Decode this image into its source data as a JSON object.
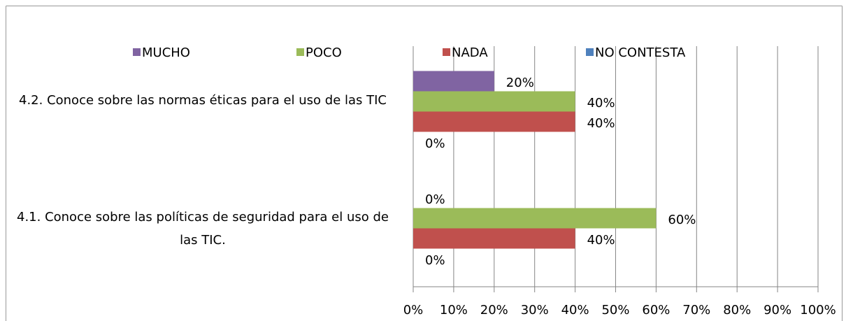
{
  "chart_data": {
    "type": "bar",
    "orientation": "horizontal",
    "categories": [
      "4.1. Conoce sobre las políticas de seguridad para el uso de las TIC.",
      "4.2. Conoce sobre las normas éticas para el uso de las TIC"
    ],
    "series": [
      {
        "name": "MUCHO",
        "color": "#8064a2",
        "values": [
          0,
          20
        ],
        "value_labels": [
          "0%",
          "20%"
        ]
      },
      {
        "name": "POCO",
        "color": "#9bbb59",
        "values": [
          60,
          40
        ],
        "value_labels": [
          "60%",
          "40%"
        ]
      },
      {
        "name": "NADA",
        "color": "#c0504d",
        "values": [
          40,
          40
        ],
        "value_labels": [
          "40%",
          "40%"
        ]
      },
      {
        "name": "NO CONTESTA",
        "color": "#4f81bd",
        "values": [
          0,
          0
        ],
        "value_labels": [
          "0%",
          "0%"
        ]
      }
    ],
    "xlim": [
      0,
      100
    ],
    "xticks": [
      {
        "value": 0,
        "label": "0%"
      },
      {
        "value": 10,
        "label": "10%"
      },
      {
        "value": 20,
        "label": "20%"
      },
      {
        "value": 30,
        "label": "30%"
      },
      {
        "value": 40,
        "label": "40%"
      },
      {
        "value": 50,
        "label": "50%"
      },
      {
        "value": 60,
        "label": "60%"
      },
      {
        "value": 70,
        "label": "70%"
      },
      {
        "value": 80,
        "label": "80%"
      },
      {
        "value": 90,
        "label": "90%"
      },
      {
        "value": 100,
        "label": "100%"
      }
    ],
    "grid": true,
    "legend": "top"
  }
}
